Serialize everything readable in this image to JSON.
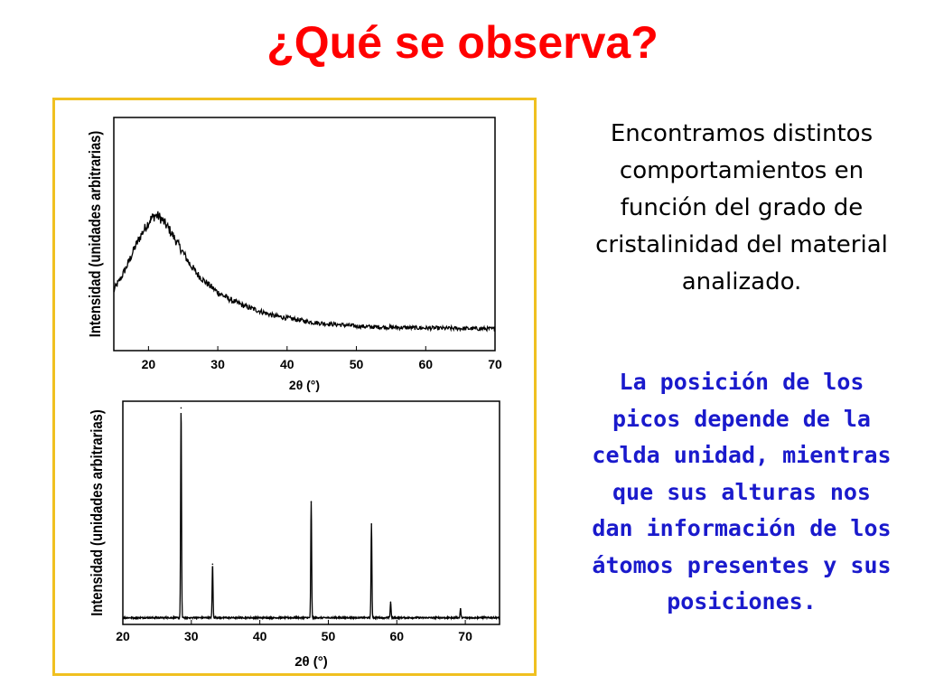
{
  "title": "¿Qué se observa?",
  "colors": {
    "title": "#ff0000",
    "frame": "#f0c020",
    "accent_text": "#1a1acc",
    "text": "#000000",
    "plot": "#000000"
  },
  "paragraph_1": "Encontramos distintos comportamientos en función del grado de cristalinidad del material analizado.",
  "paragraph_2": "La posición de los picos depende de la celda unidad, mientras que sus alturas nos dan información de los átomos presentes y sus posiciones.",
  "chart_data": [
    {
      "type": "line",
      "xlabel": "2θ (°)",
      "ylabel": "Intensidad (unidades arbitrarias)",
      "xlim": [
        15,
        70
      ],
      "ylim": [
        0,
        100
      ],
      "xticks": [
        20,
        30,
        40,
        50,
        60,
        70
      ],
      "series": [
        {
          "x": [
            15,
            16,
            17,
            18,
            19,
            20,
            20.5,
            21,
            21.5,
            22,
            23,
            24,
            25,
            26,
            27,
            28,
            29,
            30,
            32,
            34,
            36,
            38,
            40,
            42,
            44,
            46,
            48,
            50,
            52,
            55,
            58,
            60,
            62,
            65,
            68,
            70
          ],
          "y": [
            26,
            31,
            37,
            44,
            50,
            55,
            57,
            58,
            57.5,
            56,
            52,
            47,
            42,
            37,
            33,
            30,
            27.5,
            25,
            21.5,
            19,
            17,
            15,
            14,
            13,
            12,
            11.5,
            11,
            10.5,
            10.2,
            10,
            9.8,
            9.7,
            9.6,
            9.5,
            9.4,
            9.3
          ]
        }
      ]
    },
    {
      "type": "line",
      "xlabel": "2θ (°)",
      "ylabel": "Intensidad (unidades arbitrarias)",
      "xlim": [
        20,
        75
      ],
      "ylim": [
        0,
        100
      ],
      "xticks": [
        20,
        30,
        40,
        50,
        60,
        70
      ],
      "baseline": 3,
      "peaks": [
        {
          "x": 28.5,
          "y": 97
        },
        {
          "x": 33.1,
          "y": 27
        },
        {
          "x": 47.5,
          "y": 55
        },
        {
          "x": 56.3,
          "y": 45
        },
        {
          "x": 59.1,
          "y": 10
        },
        {
          "x": 69.3,
          "y": 7
        }
      ]
    }
  ]
}
